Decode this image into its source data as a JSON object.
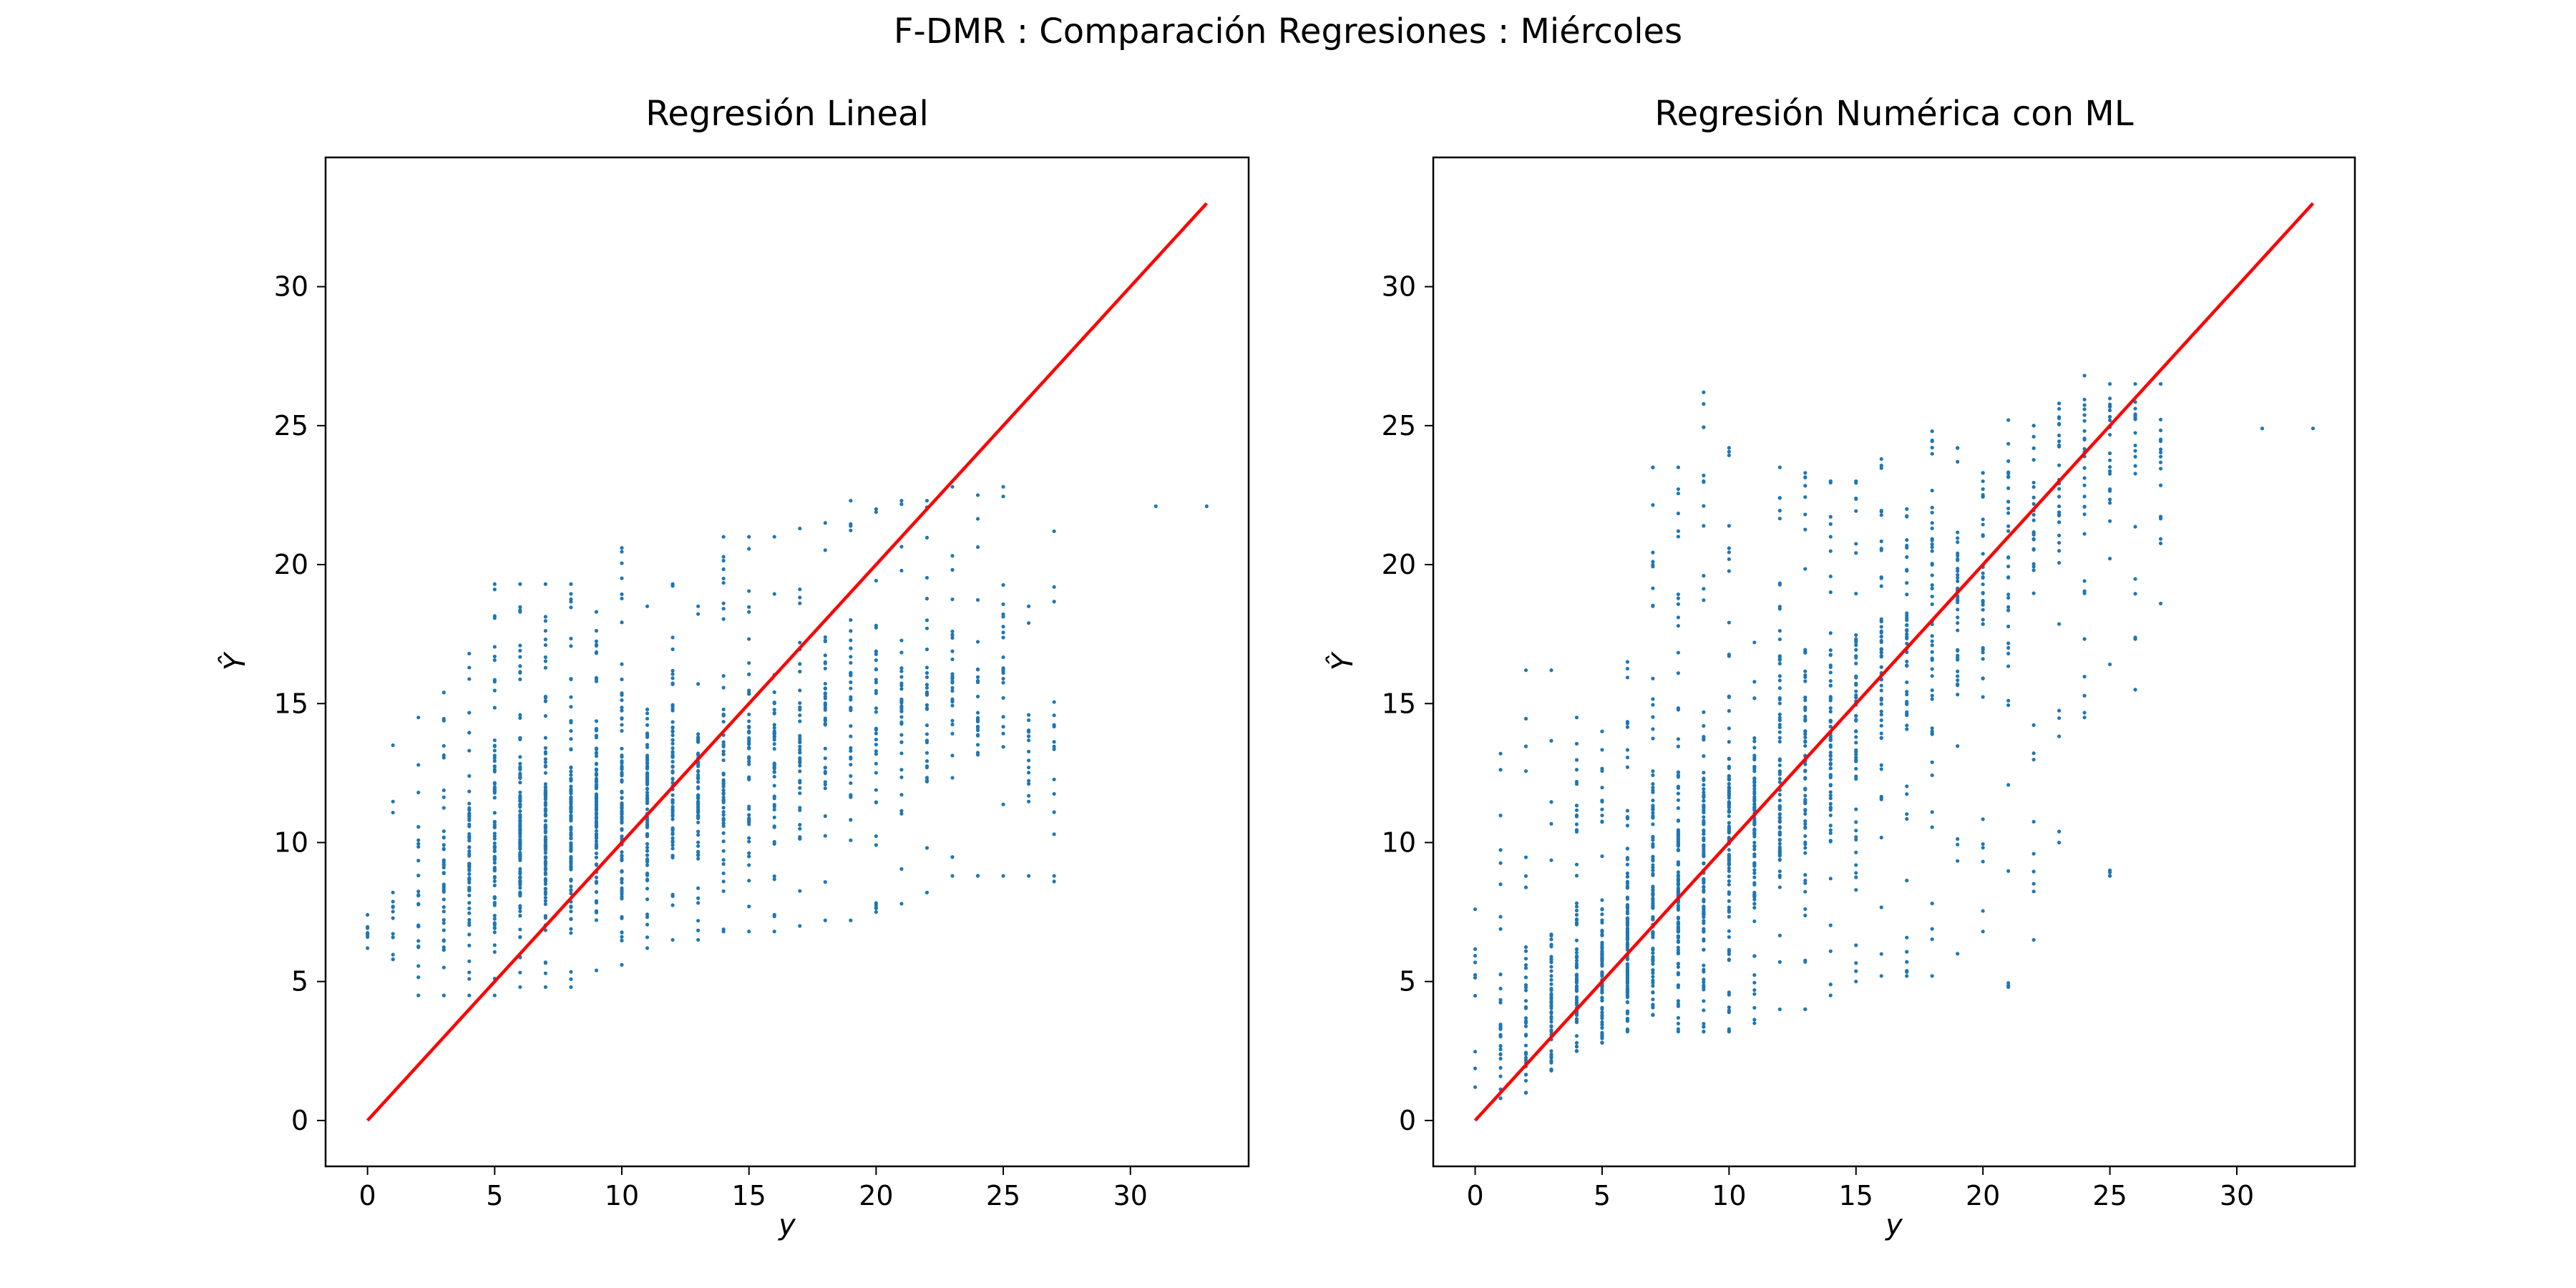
{
  "figure": {
    "suptitle": "F-DMR : Comparación Regresiones : Miércoles"
  },
  "colors": {
    "points": "#1f77b4",
    "reference_line": "#ff0000",
    "axes": "#000000",
    "background": "#ffffff"
  },
  "chart_data": [
    {
      "type": "scatter",
      "title": "Regresión Lineal",
      "xlabel": "y",
      "ylabel": "Ŷ",
      "xlim": [
        -1.65,
        34.65
      ],
      "ylim": [
        -1.65,
        34.65
      ],
      "xticks": [
        0,
        5,
        10,
        15,
        20,
        25,
        30
      ],
      "yticks": [
        0,
        5,
        10,
        15,
        20,
        25,
        30
      ],
      "grid": false,
      "reference_line": {
        "x": [
          0,
          33
        ],
        "y": [
          0,
          33
        ]
      },
      "point_columns": [
        {
          "x": 0,
          "yMin": 6.2,
          "yMax": 7.4,
          "center": 6.9,
          "n": 6
        },
        {
          "x": 1,
          "yMin": 5.8,
          "yMax": 13.5,
          "center": 7.5,
          "n": 12
        },
        {
          "x": 2,
          "yMin": 4.5,
          "yMax": 14.5,
          "center": 8.0,
          "n": 22
        },
        {
          "x": 3,
          "yMin": 4.5,
          "yMax": 15.4,
          "center": 8.6,
          "n": 40
        },
        {
          "x": 4,
          "yMin": 4.5,
          "yMax": 16.8,
          "center": 9.2,
          "n": 60
        },
        {
          "x": 5,
          "yMin": 4.5,
          "yMax": 19.3,
          "center": 9.8,
          "n": 80
        },
        {
          "x": 6,
          "yMin": 4.8,
          "yMax": 19.3,
          "center": 10.2,
          "n": 100
        },
        {
          "x": 7,
          "yMin": 4.8,
          "yMax": 19.3,
          "center": 10.5,
          "n": 110
        },
        {
          "x": 8,
          "yMin": 4.8,
          "yMax": 19.3,
          "center": 10.8,
          "n": 110
        },
        {
          "x": 9,
          "yMin": 5.4,
          "yMax": 18.3,
          "center": 11.0,
          "n": 100
        },
        {
          "x": 10,
          "yMin": 5.6,
          "yMax": 20.6,
          "center": 11.3,
          "n": 90
        },
        {
          "x": 11,
          "yMin": 6.2,
          "yMax": 18.5,
          "center": 11.6,
          "n": 80
        },
        {
          "x": 12,
          "yMin": 6.5,
          "yMax": 19.3,
          "center": 11.8,
          "n": 70
        },
        {
          "x": 13,
          "yMin": 6.5,
          "yMax": 18.5,
          "center": 12.0,
          "n": 60
        },
        {
          "x": 14,
          "yMin": 6.8,
          "yMax": 21.0,
          "center": 12.3,
          "n": 55
        },
        {
          "x": 15,
          "yMin": 6.8,
          "yMax": 21.0,
          "center": 12.5,
          "n": 50
        },
        {
          "x": 16,
          "yMin": 6.8,
          "yMax": 21.0,
          "center": 13.5,
          "n": 45
        },
        {
          "x": 17,
          "yMin": 7.0,
          "yMax": 21.3,
          "center": 13.8,
          "n": 40
        },
        {
          "x": 18,
          "yMin": 7.2,
          "yMax": 21.5,
          "center": 14.2,
          "n": 38
        },
        {
          "x": 19,
          "yMin": 7.2,
          "yMax": 22.3,
          "center": 14.5,
          "n": 36
        },
        {
          "x": 20,
          "yMin": 7.5,
          "yMax": 22.0,
          "center": 14.8,
          "n": 34
        },
        {
          "x": 21,
          "yMin": 7.8,
          "yMax": 22.3,
          "center": 15.0,
          "n": 32
        },
        {
          "x": 22,
          "yMin": 8.2,
          "yMax": 22.3,
          "center": 15.3,
          "n": 30
        },
        {
          "x": 23,
          "yMin": 8.8,
          "yMax": 22.8,
          "center": 15.5,
          "n": 28
        },
        {
          "x": 24,
          "yMin": 8.8,
          "yMax": 22.5,
          "center": 15.8,
          "n": 25
        },
        {
          "x": 25,
          "yMin": 8.8,
          "yMax": 22.8,
          "center": 15.8,
          "n": 22
        },
        {
          "x": 26,
          "yMin": 8.8,
          "yMax": 18.5,
          "center": 13.5,
          "n": 16
        },
        {
          "x": 27,
          "yMin": 8.8,
          "yMax": 21.2,
          "center": 13.5,
          "n": 12
        }
      ],
      "extra_points": [
        [
          31,
          22.1
        ],
        [
          33,
          22.1
        ],
        [
          27,
          10.3
        ],
        [
          27,
          8.6
        ]
      ]
    },
    {
      "type": "scatter",
      "title": "Regresión Numérica con ML",
      "xlabel": "y",
      "ylabel": "Ŷ",
      "xlim": [
        -1.65,
        34.65
      ],
      "ylim": [
        -1.65,
        34.65
      ],
      "xticks": [
        0,
        5,
        10,
        15,
        20,
        25,
        30
      ],
      "yticks": [
        0,
        5,
        10,
        15,
        20,
        25,
        30
      ],
      "grid": false,
      "reference_line": {
        "x": [
          0,
          33
        ],
        "y": [
          0,
          33
        ]
      },
      "point_columns": [
        {
          "x": 0,
          "yMin": 1.2,
          "yMax": 7.6,
          "center": 5.5,
          "n": 8
        },
        {
          "x": 1,
          "yMin": 0.8,
          "yMax": 13.2,
          "center": 2.0,
          "n": 30
        },
        {
          "x": 2,
          "yMin": 1.0,
          "yMax": 16.2,
          "center": 2.8,
          "n": 45
        },
        {
          "x": 3,
          "yMin": 1.8,
          "yMax": 16.2,
          "center": 3.6,
          "n": 60
        },
        {
          "x": 4,
          "yMin": 2.5,
          "yMax": 14.5,
          "center": 4.5,
          "n": 80
        },
        {
          "x": 5,
          "yMin": 2.8,
          "yMax": 14.0,
          "center": 5.3,
          "n": 100
        },
        {
          "x": 6,
          "yMin": 3.2,
          "yMax": 16.5,
          "center": 6.2,
          "n": 115
        },
        {
          "x": 7,
          "yMin": 3.8,
          "yMax": 23.5,
          "center": 7.1,
          "n": 120
        },
        {
          "x": 8,
          "yMin": 3.2,
          "yMax": 23.5,
          "center": 8.0,
          "n": 120
        },
        {
          "x": 9,
          "yMin": 3.2,
          "yMax": 26.2,
          "center": 9.0,
          "n": 110
        },
        {
          "x": 10,
          "yMin": 3.2,
          "yMax": 24.2,
          "center": 9.9,
          "n": 100
        },
        {
          "x": 11,
          "yMin": 3.5,
          "yMax": 17.2,
          "center": 10.8,
          "n": 90
        },
        {
          "x": 12,
          "yMin": 4.0,
          "yMax": 23.5,
          "center": 11.8,
          "n": 80
        },
        {
          "x": 13,
          "yMin": 4.0,
          "yMax": 23.3,
          "center": 12.7,
          "n": 72
        },
        {
          "x": 14,
          "yMin": 4.5,
          "yMax": 23.0,
          "center": 13.7,
          "n": 65
        },
        {
          "x": 15,
          "yMin": 5.0,
          "yMax": 23.0,
          "center": 14.7,
          "n": 60
        },
        {
          "x": 16,
          "yMin": 5.2,
          "yMax": 23.8,
          "center": 15.7,
          "n": 55
        },
        {
          "x": 17,
          "yMin": 5.2,
          "yMax": 22.0,
          "center": 16.7,
          "n": 50
        },
        {
          "x": 18,
          "yMin": 5.2,
          "yMax": 24.8,
          "center": 17.7,
          "n": 46
        },
        {
          "x": 19,
          "yMin": 6.0,
          "yMax": 24.2,
          "center": 18.7,
          "n": 42
        },
        {
          "x": 20,
          "yMin": 6.8,
          "yMax": 23.3,
          "center": 19.7,
          "n": 38
        },
        {
          "x": 21,
          "yMin": 4.8,
          "yMax": 25.2,
          "center": 20.7,
          "n": 34
        },
        {
          "x": 22,
          "yMin": 6.5,
          "yMax": 25.0,
          "center": 21.7,
          "n": 30
        },
        {
          "x": 23,
          "yMin": 10.0,
          "yMax": 25.8,
          "center": 22.5,
          "n": 28
        },
        {
          "x": 24,
          "yMin": 14.5,
          "yMax": 26.8,
          "center": 23.5,
          "n": 26
        },
        {
          "x": 25,
          "yMin": 8.8,
          "yMax": 26.5,
          "center": 24.0,
          "n": 24
        },
        {
          "x": 26,
          "yMin": 15.5,
          "yMax": 26.5,
          "center": 24.5,
          "n": 18
        },
        {
          "x": 27,
          "yMin": 18.6,
          "yMax": 26.5,
          "center": 24.5,
          "n": 14
        }
      ],
      "extra_points": [
        [
          31,
          24.9
        ],
        [
          33,
          24.9
        ],
        [
          25,
          8.8
        ],
        [
          25,
          9.0
        ],
        [
          26,
          15.5
        ]
      ]
    }
  ]
}
